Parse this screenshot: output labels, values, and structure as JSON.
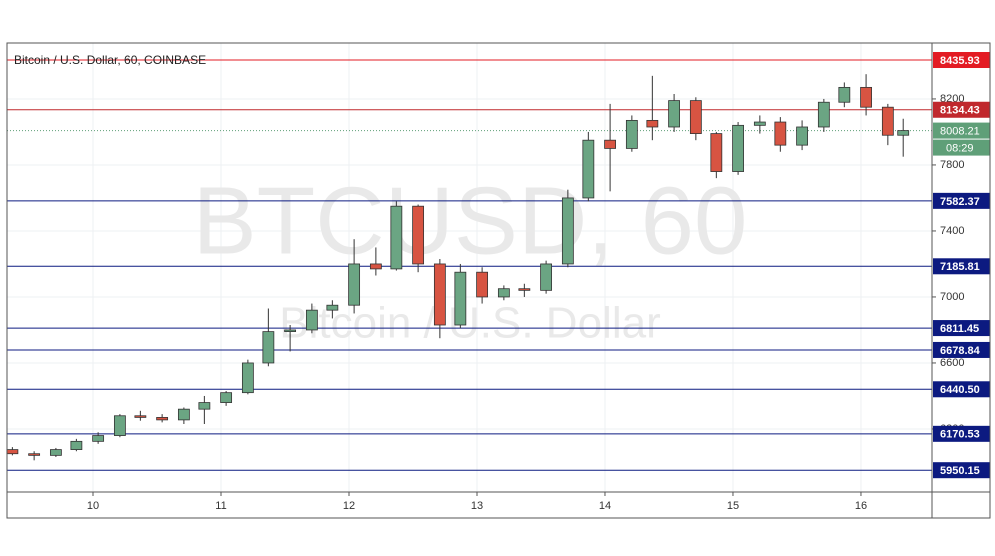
{
  "chart_data": {
    "type": "candlestick",
    "title": "Bitcoin / U.S. Dollar, 60, COINBASE",
    "watermark": "BTCUSD, 60",
    "watermark_subtitle": "Bitcoin / U.S. Dollar",
    "x": [
      9.37,
      9.54,
      9.71,
      9.87,
      10.04,
      10.21,
      10.37,
      10.54,
      10.71,
      10.87,
      11.04,
      11.21,
      11.37,
      11.54,
      11.71,
      11.87,
      12.04,
      12.21,
      12.37,
      12.54,
      12.71,
      12.87,
      13.04,
      13.21,
      13.37,
      13.54,
      13.71,
      13.87,
      14.04,
      14.21,
      14.37,
      14.54,
      14.71,
      14.87,
      15.04,
      15.21,
      15.37,
      15.54,
      15.71,
      15.87,
      16.04,
      16.21,
      16.33
    ],
    "open": [
      6075,
      6050,
      6040,
      6075,
      6125,
      6160,
      6280,
      6270,
      6255,
      6320,
      6360,
      6420,
      6600,
      6790,
      6800,
      6920,
      6950,
      7200,
      7170,
      7550,
      7200,
      6830,
      7150,
      7000,
      7050,
      7040,
      7200,
      7600,
      7950,
      7900,
      8070,
      8030,
      8190,
      7990,
      7760,
      8040,
      8060,
      7920,
      8030,
      8180,
      8270,
      8150,
      7980
    ],
    "high": [
      6090,
      6065,
      6085,
      6140,
      6180,
      6290,
      6310,
      6290,
      6330,
      6400,
      6430,
      6620,
      6930,
      6830,
      6960,
      6980,
      7350,
      7300,
      7580,
      7560,
      7230,
      7200,
      7180,
      7070,
      7080,
      7220,
      7650,
      8000,
      8170,
      8100,
      8340,
      8230,
      8210,
      8000,
      8060,
      8100,
      8090,
      8070,
      8200,
      8300,
      8350,
      8170,
      8080
    ],
    "low": [
      6040,
      6010,
      6030,
      6065,
      6110,
      6150,
      6250,
      6240,
      6230,
      6230,
      6340,
      6410,
      6580,
      6670,
      6780,
      6870,
      6900,
      7130,
      7160,
      7150,
      6750,
      6810,
      6960,
      6980,
      7000,
      7020,
      7180,
      7580,
      7640,
      7880,
      7950,
      8000,
      7950,
      7720,
      7740,
      7990,
      7880,
      7890,
      8000,
      8150,
      8100,
      7920,
      7850
    ],
    "close": [
      6050,
      6040,
      6075,
      6125,
      6160,
      6280,
      6270,
      6255,
      6320,
      6360,
      6420,
      6600,
      6790,
      6800,
      6920,
      6950,
      7200,
      7170,
      7550,
      7200,
      6830,
      7150,
      7000,
      7050,
      7040,
      7200,
      7600,
      7950,
      7900,
      8070,
      8030,
      8190,
      7990,
      7760,
      8040,
      8060,
      7920,
      8030,
      8180,
      8270,
      8150,
      7980,
      8008.21
    ],
    "up_color": "#6ba583",
    "down_color": "#d75442",
    "xlim": [
      9.328,
      16.555
    ],
    "xticks": [
      10,
      11,
      12,
      13,
      14,
      15,
      16
    ],
    "ylim": [
      5818,
      8539
    ],
    "yticks": [
      6200,
      6600,
      7000,
      7400,
      7800,
      8200
    ],
    "grid": true,
    "levels": {
      "values": [
        8435.93,
        8134.43,
        7582.37,
        7185.81,
        6811.45,
        6678.84,
        6440.5,
        6170.53,
        5950.15
      ],
      "value_labels": [
        "8435.93",
        "8134.43",
        "7582.37",
        "7185.81",
        "6811.45",
        "6678.84",
        "6440.50",
        "6170.53",
        "5950.15"
      ],
      "colors": [
        "#e31b23",
        "#c0282d",
        "#0c1a80",
        "#0c1a80",
        "#0c1a80",
        "#0c1a80",
        "#0c1a80",
        "#0c1a80",
        "#0c1a80"
      ]
    },
    "last_price": 8008.21,
    "last_color": "#5f9f78",
    "countdown": "08:29"
  }
}
